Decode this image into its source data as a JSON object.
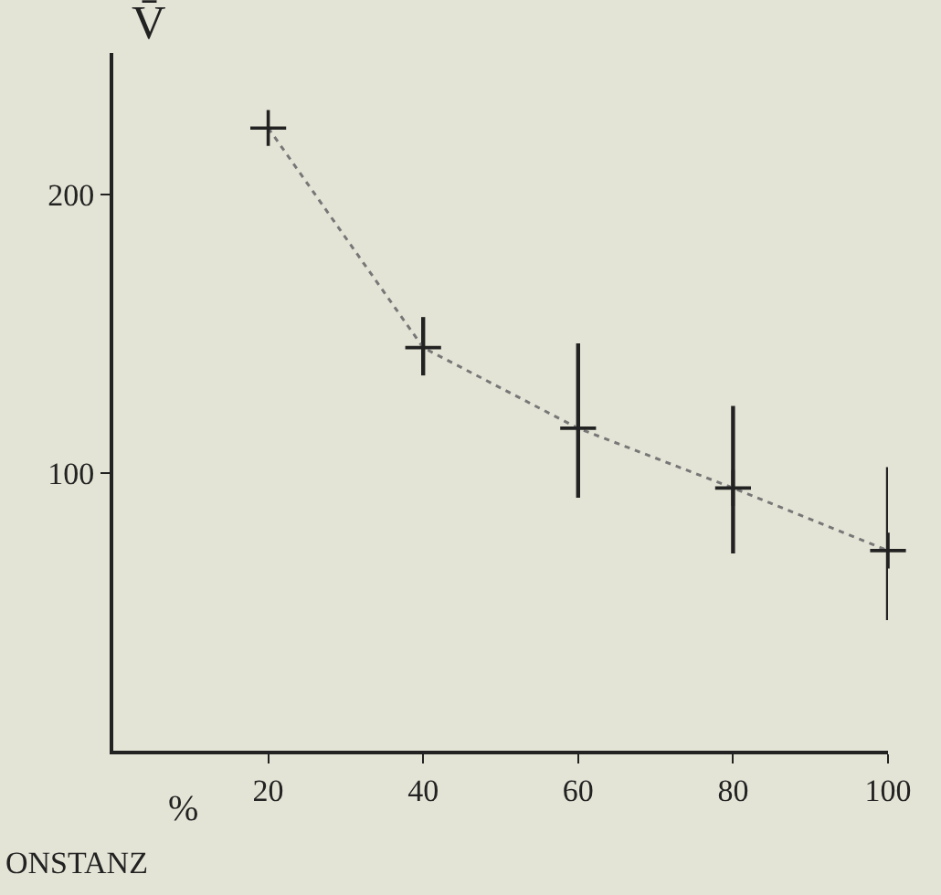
{
  "chart_data": {
    "type": "line",
    "ylabel": "V̄",
    "xlabel": "%",
    "annotations": [
      "ONSTANZ"
    ],
    "x": [
      20,
      40,
      60,
      80,
      100
    ],
    "series": [
      {
        "color": "#777777",
        "values": [
          224,
          145,
          116,
          94.5,
          72
        ],
        "errors": [
          null,
          [
            135,
            156
          ],
          [
            91,
            146.5
          ],
          [
            71,
            124
          ],
          [
            47,
            102
          ]
        ]
      }
    ],
    "xlim": [
      0,
      100
    ],
    "xticks": [
      20,
      40,
      60,
      80,
      100
    ],
    "ylim": [
      0,
      251
    ],
    "yticks": [
      100,
      200
    ],
    "marker": "cross",
    "line_style": "dotted",
    "grid": false,
    "legend": false
  }
}
